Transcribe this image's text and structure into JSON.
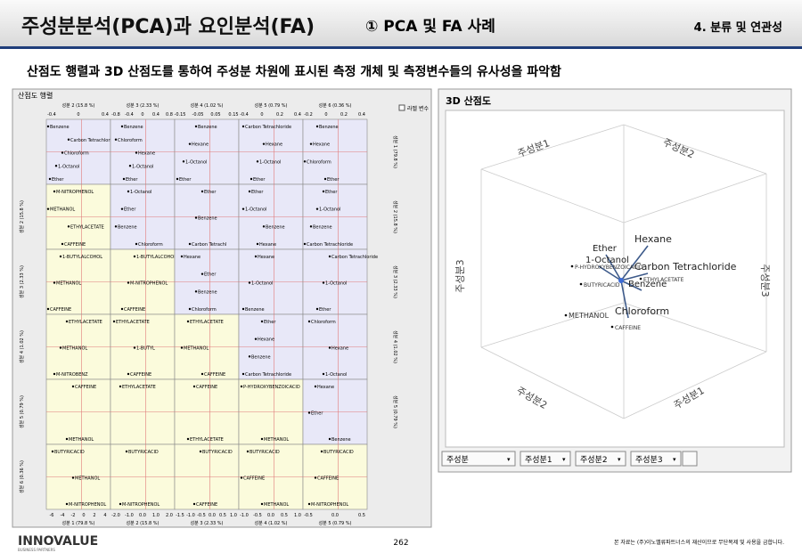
{
  "header": {
    "title": "주성분분석(PCA)과 요인분석(FA)",
    "section": "①  PCA 및 FA 사례",
    "chapter": "4. 분류 및 연관성"
  },
  "subtitle": "산점도 행렬과 3D 산점도를 통하여 주성분 차원에 표시된 측정 개체 및 측정변수들의 유사성을 파악함",
  "matrix": {
    "title": "산점도 행렬",
    "checkbox": "라벨 변수",
    "top_labels": [
      "성분 2 (15.8 %)",
      "성분 3 (2.33 %)",
      "성분 4 (1.02 %)",
      "성분 5 (0.79 %)",
      "성분 6 (0.36 %)"
    ],
    "right_labels": [
      "성분 1 (79.8 %)",
      "성분 2 (15.8 %)",
      "성분 3 (2.33 %)",
      "성분 4 (1.02 %)",
      "성분 5 (0.79 %)"
    ],
    "left_labels": [
      "성분 2 (15.8 %)",
      "성분 3 (2.33 %)",
      "성분 4 (1.02 %)",
      "성분 5 (0.79 %)",
      "성분 6 (0.36 %)"
    ],
    "bottom_labels": [
      "성분 1 (79.8 %)",
      "성분 2 (15.8 %)",
      "성분 3 (2.33 %)",
      "성분 4 (1.02 %)",
      "성분 5 (0.79 %)"
    ],
    "top_ticks": [
      [
        "-0.4",
        "0",
        "0.4"
      ],
      [
        "-0.8",
        "-0.4",
        "0",
        "0.4",
        "0.8"
      ],
      [
        "-0.15",
        "-0.05",
        "0.05",
        "0.15"
      ],
      [
        "-0.4",
        "0",
        "0.2",
        "0.4"
      ],
      [
        "-0.2",
        "0",
        "0.2",
        "0.4"
      ]
    ],
    "bottom_ticks": [
      [
        "-6",
        "-4",
        "-2",
        "0",
        "2",
        "4"
      ],
      [
        "-2.0",
        "-1.0",
        "0.0",
        "1.0",
        "2.0"
      ],
      [
        "-1.5",
        "-1.0",
        "-0.5",
        "0.0",
        "0.5",
        "1.0"
      ],
      [
        "-1.0",
        "-0.5",
        "0.0",
        "0.5",
        "1.0"
      ],
      [
        "-0.5",
        "0.0",
        "0.5"
      ]
    ],
    "cells": [
      [
        [
          "Benzene",
          "Carbon Tetrachloride",
          "Chloroform",
          "1-Octanol",
          "Ether"
        ],
        [
          "Benzene",
          "Chloroform",
          "Hexane",
          "1-Octanol",
          "Ether"
        ],
        [
          "Benzene",
          "Hexane",
          "1-Octanol",
          "Ether"
        ],
        [
          "Carbon Tetrachloride",
          "Hexane",
          "1-Octanol",
          "Ether"
        ],
        [
          "Benzene",
          "Hexane",
          "Chloroform",
          "Ether"
        ]
      ],
      [
        [
          "M-NITROPHENOL",
          "METHANOL",
          "ETHYLACETATE",
          "CAFFEINE"
        ],
        [
          "1-Octanol",
          "Ether",
          "Benzene",
          "Chloroform"
        ],
        [
          "Ether",
          "Benzene",
          "Carbon Tetrachl"
        ],
        [
          "Ether",
          "1-Octanol",
          "Benzene",
          "Hexane"
        ],
        [
          "Ether",
          "1-Octanol",
          "Benzene",
          "Carbon Tetrachloride"
        ]
      ],
      [
        [
          "1-BUTYLALCOHOL",
          "METHANOL",
          "CAFFEINE"
        ],
        [
          "1-BUTYLALCOHOL",
          "M-NITROPHENOL",
          "CAFFEINE"
        ],
        [
          "Hexane",
          "Ether",
          "Benzene",
          "Chloroform"
        ],
        [
          "Hexane",
          "1-Octanol",
          "Benzene"
        ],
        [
          "Carbon Tetrachloride",
          "1-Octanol",
          "Ether"
        ]
      ],
      [
        [
          "ETHYLACETATE",
          "METHANOL",
          "M-NITROBENZ"
        ],
        [
          "ETHYLACETATE",
          "1-BUTYL",
          "CAFFEINE"
        ],
        [
          "ETHYLACETATE",
          "METHANOL",
          "CAFFEINE"
        ],
        [
          "Ether",
          "Hexane",
          "Benzene",
          "Carbon Tetrachloride"
        ],
        [
          "Chloroform",
          "Hexane",
          "1-Octanol"
        ]
      ],
      [
        [
          "CAFFEINE",
          "METHANOL"
        ],
        [
          "ETHYLACETATE"
        ],
        [
          "CAFFEINE",
          "ETHYLACETATE"
        ],
        [
          "P-HYDROXYBENZOICACID",
          "METHANOL"
        ],
        [
          "Hexane",
          "Ether",
          "Benzene"
        ]
      ],
      [
        [
          "BUTYRICACID",
          "METHANOL",
          "M-NITROPHENOL"
        ],
        [
          "BUTYRICACID",
          "M-NITROPHENOL"
        ],
        [
          "BUTYRICACID",
          "CAFFEINE"
        ],
        [
          "BUTYRICACID",
          "CAFFEINE",
          "METHANOL"
        ],
        [
          "BUTYRICACID",
          "CAFFEINE",
          "M-NITROPHENOL"
        ]
      ]
    ]
  },
  "scatter3d": {
    "title": "3D 산점도",
    "axis_labels": [
      "주성분1",
      "주성분2",
      "주성분3",
      "주성분3",
      "주성분2",
      "주성분1"
    ],
    "vectors": [
      "Hexane",
      "Ether",
      "1-Octanol",
      "Carbon Tetrachloride",
      "Benzene",
      "Chloroform"
    ],
    "points": [
      "P-HYDROXYBENZOICACID",
      "BUTYRICACID",
      "ETHYLACETATE",
      "METHANOL",
      "CAFFEINE"
    ],
    "controls": [
      "주성분",
      "주성분1",
      "주성분2",
      "주성분3"
    ]
  },
  "footer": {
    "logo": "INNOVALUE",
    "logo_sub": "BUSINESS PARTNERS",
    "page": "262",
    "notice": "본 자료는 (주)이노밸류파트너스의 재산이므로 무단복제 및 사용을 금합니다."
  }
}
